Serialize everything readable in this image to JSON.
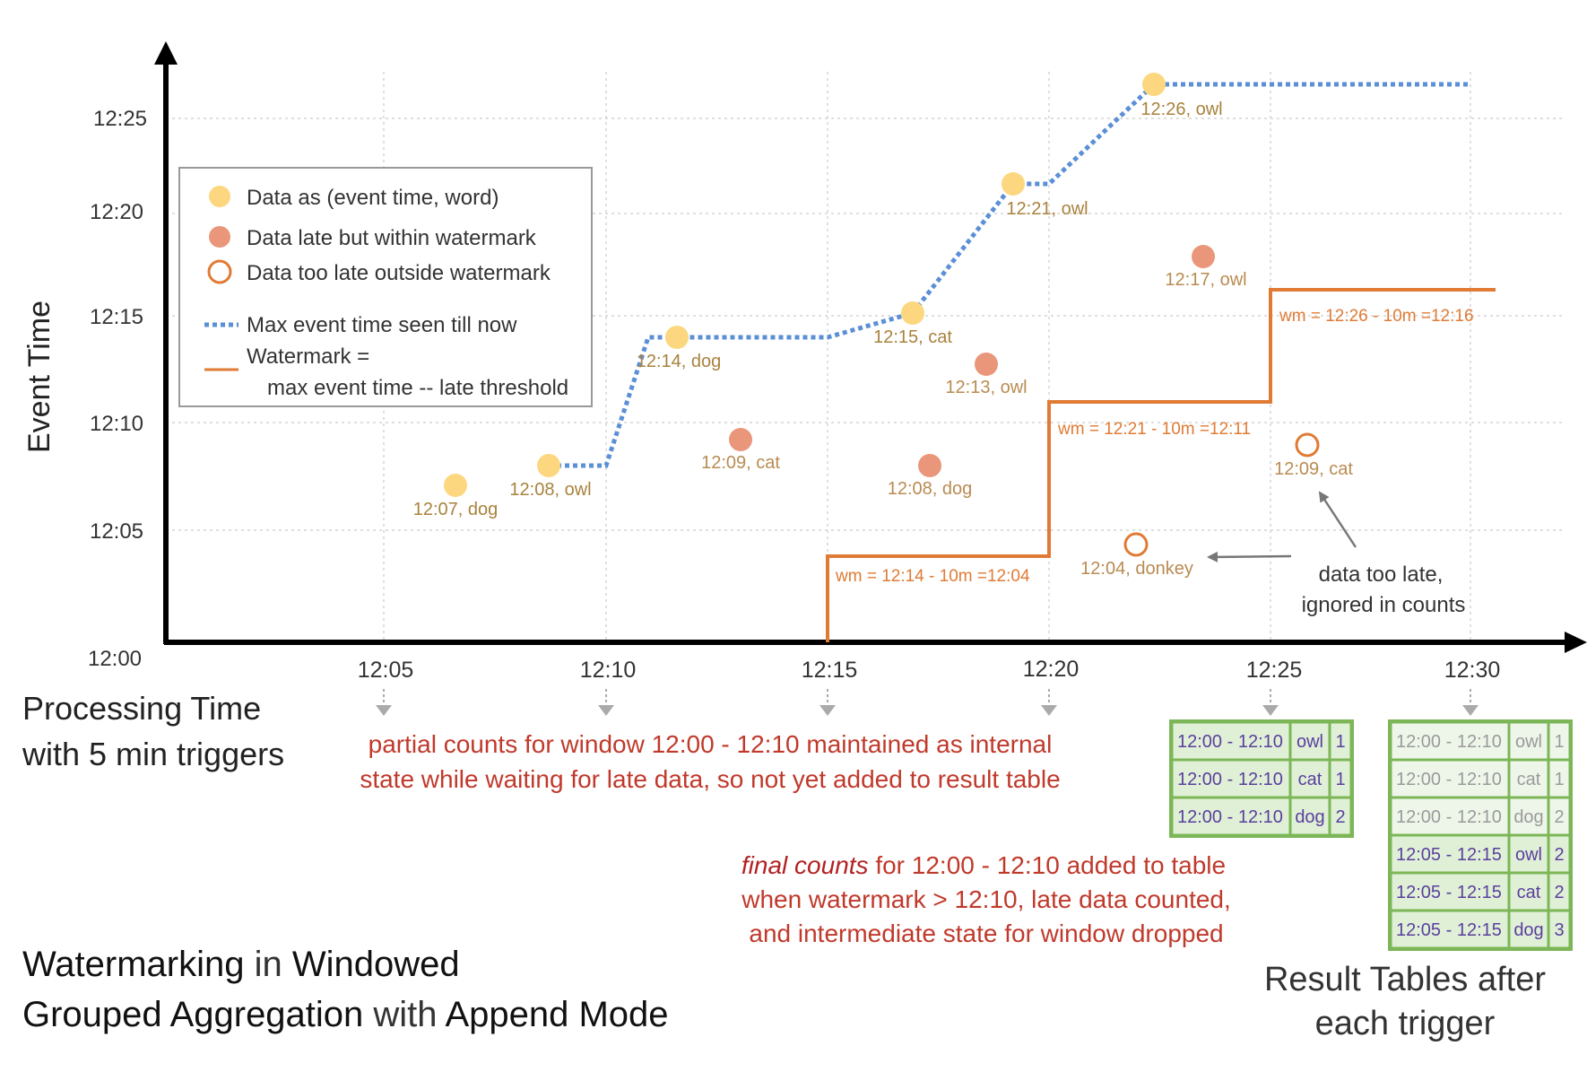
{
  "axes": {
    "y_label": "Event Time",
    "y_ticks": [
      "12:00",
      "12:05",
      "12:10",
      "12:15",
      "12:20",
      "12:25"
    ],
    "x_ticks": [
      "12:05",
      "12:10",
      "12:15",
      "12:20",
      "12:25",
      "12:30"
    ],
    "x_label_line1": "Processing Time",
    "x_label_line2": "with 5 min triggers"
  },
  "legend": {
    "data": "Data as (event time, word)",
    "late_within": "Data late but within watermark",
    "too_late": "Data too late outside watermark",
    "max_event": "Max event time seen till now",
    "watermark_line1": "Watermark =",
    "watermark_line2": "max event time -- late threshold"
  },
  "points": {
    "p1": "12:07, dog",
    "p2": "12:08, owl",
    "p3": "12:14, dog",
    "p4": "12:09, cat",
    "p5": "12:15, cat",
    "p6": "12:08, dog",
    "p7": "12:13, owl",
    "p8": "12:21, owl",
    "p9": "12:26, owl",
    "p10": "12:04, donkey",
    "p11": "12:17, owl",
    "p12": "12:09, cat"
  },
  "watermarks": {
    "wm1": "wm = 12:14 - 10m =12:04",
    "wm2": "wm = 12:21 - 10m =12:11",
    "wm3": "wm = 12:26 - 10m =12:16"
  },
  "notes": {
    "too_late_line1": "data too late,",
    "too_late_line2": "ignored in counts",
    "partial_line1": "partial counts for window 12:00 - 12:10 maintained as internal",
    "partial_line2": "state while waiting for late data, so not yet added  to result table",
    "final_emph": "final counts",
    "final_rest": " for 12:00 - 12:10 added to table",
    "final_line2": "when watermark > 12:10, late data counted,",
    "final_line3": "and intermediate state for window dropped"
  },
  "title": {
    "w1": "Watermarking",
    "w2": " in ",
    "w3": "Windowed",
    "w4": "Grouped Aggregation",
    "w5": " with ",
    "w6": "Append Mode"
  },
  "result_title_line1": "Result Tables after",
  "result_title_line2": "each trigger",
  "table1": [
    [
      "12:00 - 12:10",
      "owl",
      "1"
    ],
    [
      "12:00 - 12:10",
      "cat",
      "1"
    ],
    [
      "12:00 - 12:10",
      "dog",
      "2"
    ]
  ],
  "table2": [
    [
      "12:00 - 12:10",
      "owl",
      "1"
    ],
    [
      "12:00 - 12:10",
      "cat",
      "1"
    ],
    [
      "12:00 - 12:10",
      "dog",
      "2"
    ],
    [
      "12:05 - 12:15",
      "owl",
      "2"
    ],
    [
      "12:05 - 12:15",
      "cat",
      "2"
    ],
    [
      "12:05 - 12:15",
      "dog",
      "3"
    ]
  ],
  "colors": {
    "data_fill": "#fcd77f",
    "late_fill": "#e9967a",
    "too_late_stroke": "#e07b35",
    "max_line": "#5b8fd6",
    "watermark_line": "#e07b35",
    "table_border": "#7cb657",
    "table_fill": "#dff0d6",
    "red_note": "#c0392b"
  }
}
